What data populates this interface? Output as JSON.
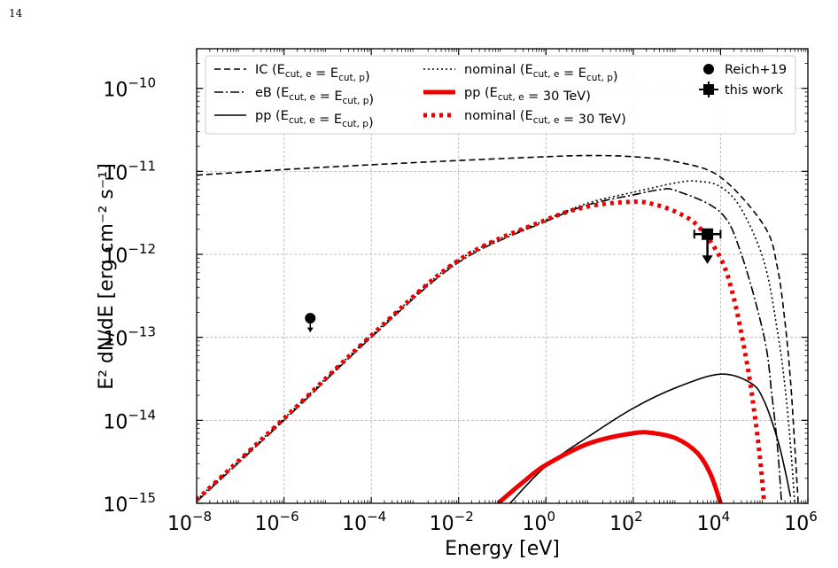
{
  "page_number": "14",
  "chart_data": {
    "type": "line",
    "xscale": "log",
    "yscale": "log",
    "xlim": [
      1e-08,
      1000000.0
    ],
    "ylim": [
      1e-15,
      3e-10
    ],
    "xlabel": "Energy [eV]",
    "ylabel": "E² dN/dE [erg cm⁻² s⁻¹]",
    "grid": true,
    "legend_position": "top",
    "x_ticks": [
      {
        "exp": -8,
        "label_base": "10",
        "label_exp": "−8"
      },
      {
        "exp": -6,
        "label_base": "10",
        "label_exp": "−6"
      },
      {
        "exp": -4,
        "label_base": "10",
        "label_exp": "−4"
      },
      {
        "exp": -2,
        "label_base": "10",
        "label_exp": "−2"
      },
      {
        "exp": 0,
        "label_base": "10",
        "label_exp": "0"
      },
      {
        "exp": 2,
        "label_base": "10",
        "label_exp": "2"
      },
      {
        "exp": 4,
        "label_base": "10",
        "label_exp": "4"
      },
      {
        "exp": 6,
        "label_base": "10",
        "label_exp": "6"
      }
    ],
    "y_ticks": [
      {
        "exp": -15,
        "label_base": "10",
        "label_exp": "−15"
      },
      {
        "exp": -14,
        "label_base": "10",
        "label_exp": "−14"
      },
      {
        "exp": -13,
        "label_base": "10",
        "label_exp": "−13"
      },
      {
        "exp": -12,
        "label_base": "10",
        "label_exp": "−12"
      },
      {
        "exp": -11,
        "label_base": "10",
        "label_exp": "−11"
      },
      {
        "exp": -10,
        "label_base": "10",
        "label_exp": "−10"
      }
    ],
    "series": [
      {
        "legend": "IC (E_cut,e = E_cut,p)",
        "name": "IC",
        "sub": "(E",
        "mid": " = E",
        "end": ")",
        "subs": [
          "cut, e",
          "cut, p"
        ],
        "color": "#000000",
        "dash": "7,4",
        "width": 1.6,
        "points": [
          [
            1e-08,
            9e-12
          ],
          [
            1e-06,
            1.05e-11
          ],
          [
            0.0001,
            1.2e-11
          ],
          [
            0.01,
            1.35e-11
          ],
          [
            1,
            1.5e-11
          ],
          [
            10,
            1.55e-11
          ],
          [
            100,
            1.5e-11
          ],
          [
            1000,
            1.3e-11
          ],
          [
            10000.0,
            8.5e-12
          ],
          [
            100000.0,
            2.2e-12
          ],
          [
            200000.0,
            7e-13
          ],
          [
            300000.0,
            1.5e-13
          ],
          [
            400000.0,
            3e-14
          ],
          [
            500000.0,
            5e-15
          ],
          [
            600000.0,
            1e-15
          ]
        ]
      },
      {
        "legend": "eB (E_cut,e = E_cut,p)",
        "name": "eB",
        "color": "#000000",
        "dash": "10,3,2,3",
        "width": 1.6,
        "subs": [
          "cut, e",
          "cut, p"
        ],
        "points": [
          [
            1e-08,
            1.05e-15
          ],
          [
            1e-06,
            1e-14
          ],
          [
            0.0001,
            1e-13
          ],
          [
            0.01,
            8e-13
          ],
          [
            1,
            2.5e-12
          ],
          [
            10,
            4e-12
          ],
          [
            100,
            5.2e-12
          ],
          [
            400,
            6e-12
          ],
          [
            1000,
            5.8e-12
          ],
          [
            10000.0,
            3.2e-12
          ],
          [
            30000.0,
            1e-12
          ],
          [
            100000.0,
            1e-13
          ],
          [
            150000.0,
            2e-14
          ],
          [
            200000.0,
            5e-15
          ],
          [
            250000.0,
            1e-15
          ]
        ]
      },
      {
        "legend": "pp (E_cut,e = E_cut,p)",
        "name": "pp",
        "color": "#000000",
        "dash": "",
        "width": 1.6,
        "subs": [
          "cut, e",
          "cut, p"
        ],
        "points": [
          [
            0.15,
            1e-15
          ],
          [
            1,
            2.8e-15
          ],
          [
            10,
            6.5e-15
          ],
          [
            100,
            1.4e-14
          ],
          [
            1000,
            2.5e-14
          ],
          [
            10000.0,
            3.6e-14
          ],
          [
            50000.0,
            2.8e-14
          ],
          [
            100000.0,
            1.7e-14
          ],
          [
            200000.0,
            6e-15
          ],
          [
            300000.0,
            2.5e-15
          ],
          [
            400000.0,
            1.2e-15
          ]
        ]
      },
      {
        "legend": "nominal (E_cut,e = E_cut,p)",
        "name": "nominal",
        "color": "#000000",
        "dash": "2,3",
        "width": 1.6,
        "subs": [
          "cut, e",
          "cut, p"
        ],
        "points": [
          [
            1e-08,
            1.1e-15
          ],
          [
            1e-06,
            1.05e-14
          ],
          [
            0.0001,
            1.05e-13
          ],
          [
            0.01,
            8.5e-13
          ],
          [
            1,
            2.6e-12
          ],
          [
            10,
            4.2e-12
          ],
          [
            100,
            5.6e-12
          ],
          [
            1000,
            7.3e-12
          ],
          [
            3000,
            7.6e-12
          ],
          [
            10000.0,
            6.5e-12
          ],
          [
            30000.0,
            3.5e-12
          ],
          [
            100000.0,
            8e-13
          ],
          [
            200000.0,
            1.2e-13
          ],
          [
            300000.0,
            2.5e-14
          ],
          [
            400000.0,
            5e-15
          ],
          [
            500000.0,
            1e-15
          ]
        ]
      },
      {
        "legend": "pp (E_cut,e = 30 TeV)",
        "name": "pp",
        "color": "#ee0000",
        "dash": "",
        "width": 5,
        "subs": [
          "cut, e"
        ],
        "points": [
          [
            0.08,
            1e-15
          ],
          [
            0.3,
            1.8e-15
          ],
          [
            1,
            2.9e-15
          ],
          [
            10,
            5.3e-15
          ],
          [
            100,
            7e-15
          ],
          [
            300,
            7e-15
          ],
          [
            1000,
            6e-15
          ],
          [
            3000,
            4e-15
          ],
          [
            6000,
            2.2e-15
          ],
          [
            10000.0,
            1e-15
          ]
        ]
      },
      {
        "legend": "nominal (E_cut,e = 30 TeV)",
        "name": "nominal",
        "color": "#ee0000",
        "dash": "4,5",
        "width": 5,
        "subs": [
          "cut, e"
        ],
        "points": [
          [
            1e-08,
            1.1e-15
          ],
          [
            1e-06,
            1.05e-14
          ],
          [
            0.0001,
            1.05e-13
          ],
          [
            0.01,
            8.5e-13
          ],
          [
            1,
            2.6e-12
          ],
          [
            10,
            3.8e-12
          ],
          [
            100,
            4.3e-12
          ],
          [
            300,
            4e-12
          ],
          [
            1000,
            3.2e-12
          ],
          [
            3000,
            2.2e-12
          ],
          [
            10000.0,
            9e-13
          ],
          [
            20000.0,
            3e-13
          ],
          [
            40000.0,
            5e-14
          ],
          [
            60000.0,
            1.2e-14
          ],
          [
            80000.0,
            3.5e-15
          ],
          [
            100000.0,
            1e-15
          ]
        ]
      }
    ],
    "points": [
      {
        "legend": "Reich+19",
        "x": 4e-06,
        "y": 1.7e-13,
        "marker": "circle",
        "upper_limit": true
      },
      {
        "legend": "this work",
        "x": 5000,
        "y": 1.75e-12,
        "xerr": [
          2500,
          5000
        ],
        "marker": "square",
        "upper_limit": true
      }
    ],
    "legend_text": {
      "ic": "IC (E",
      "eb": "eB (E",
      "pp": "pp (E",
      "nominal": "nominal (E",
      "equals": " = E",
      "eq30": " = 30 TeV)",
      "close": ")",
      "sub_e": "cut, e",
      "sub_p": "cut, p",
      "reich": "Reich+19",
      "thiswork": "this work"
    }
  }
}
